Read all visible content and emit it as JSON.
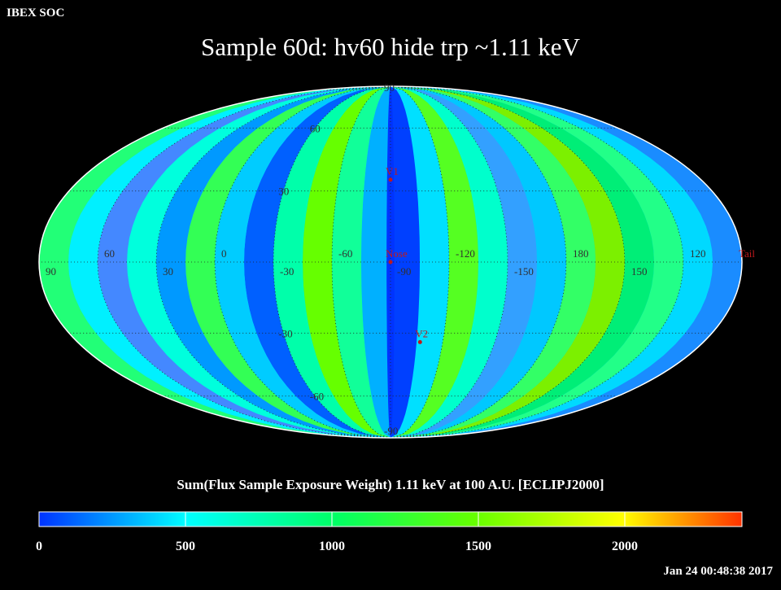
{
  "header": {
    "corner_label": "IBEX SOC",
    "title": "Sample 60d: hv60 hide trp ~1.11 keV"
  },
  "map": {
    "projection": "Mollweide",
    "center_longitude": -90,
    "latitude_labels": [
      "60",
      "30",
      "-30",
      "-60"
    ],
    "pole_labels": [
      "90",
      "-90"
    ],
    "longitude_labels": [
      "60",
      "30",
      "0",
      "-30",
      "-60",
      "-90",
      "-120",
      "-150",
      "180",
      "150",
      "120",
      "90"
    ],
    "markers": [
      {
        "label": "V1",
        "lon": -90,
        "lat": 35
      },
      {
        "label": "Nose",
        "lon": -90,
        "lat": 0
      },
      {
        "label": "V2",
        "lon": -107,
        "lat": -34
      },
      {
        "label": "Tail",
        "lon": 90,
        "lat": 0
      }
    ]
  },
  "colorbar": {
    "title": "Sum(Flux Sample Exposure Weight)  1.11 keV at 100 A.U. [ECLIPJ2000]",
    "min": 0,
    "max": 2400,
    "ticks": [
      "0",
      "500",
      "1000",
      "1500",
      "2000"
    ],
    "tick_values": [
      0,
      500,
      1000,
      1500,
      2000
    ],
    "colors": [
      "#0033ff",
      "#00ffff",
      "#00ff66",
      "#66ff00",
      "#ffff00",
      "#ff3300"
    ]
  },
  "footer": {
    "timestamp": "Jan 24 00:48:38 2017"
  }
}
